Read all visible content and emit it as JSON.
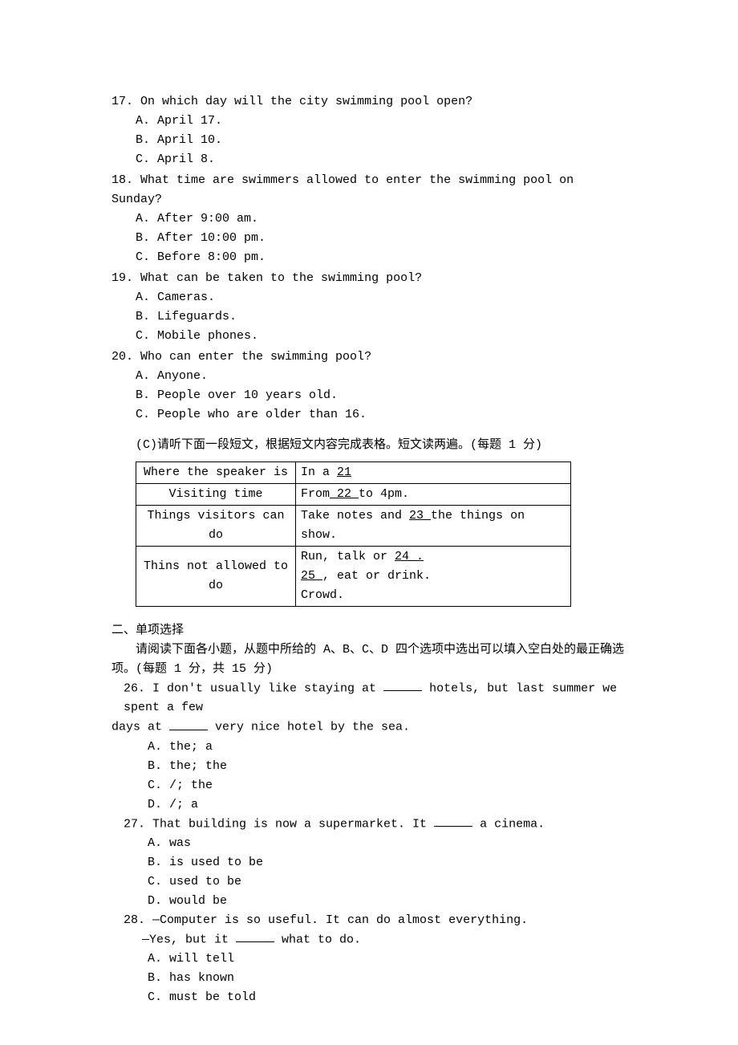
{
  "questions_listening": [
    {
      "num": "17.",
      "text": " On which day will the city swimming pool open?",
      "options": [
        "A. April 17.",
        "B. April 10.",
        "C. April 8."
      ]
    },
    {
      "num": "18.",
      "text": " What time are swimmers allowed to enter the swimming pool on Sunday?",
      "options": [
        "A. After 9:00 am.",
        "B. After 10:00 pm.",
        "C. Before 8:00 pm."
      ]
    },
    {
      "num": "19.",
      "text": " What can be taken to the swimming pool?",
      "options": [
        "A. Cameras.",
        "B. Lifeguards.",
        "C. Mobile phones."
      ]
    },
    {
      "num": "20.",
      "text": " Who can enter the swimming pool?",
      "options": [
        "A. Anyone.",
        "B. People over 10 years old.",
        "C. People who are older than 16."
      ]
    }
  ],
  "section_c_intro": "(C)请听下面一段短文，根据短文内容完成表格。短文读两遍。(每题 1 分)",
  "table": {
    "rows": [
      {
        "label": "Where the speaker is",
        "parts": [
          "In a ",
          "  21  "
        ]
      },
      {
        "label": "Visiting time",
        "parts": [
          "From",
          "  22  ",
          " to 4pm."
        ]
      },
      {
        "label": "Things visitors can do",
        "parts": [
          "Take notes and ",
          "  23  ",
          " the things on show."
        ]
      },
      {
        "label": "Thins not allowed to do",
        "line1": [
          "Run, talk or ",
          "  24  ."
        ],
        "line2": [
          "25  ",
          ", eat or drink."
        ],
        "line3": "Crowd."
      }
    ]
  },
  "section2_heading": "二、单项选择",
  "section2_instruction": "请阅读下面各小题，从题中所给的 A、B、C、D 四个选项中选出可以填入空白处的最正确选项。(每题 1 分，共 15 分)",
  "mc_questions": [
    {
      "num": "26.",
      "line1": " I don't usually like staying at ",
      "line1b": " hotels, but last summer we spent a few",
      "line2_prefix": "days at ",
      "line2_suffix": " very nice hotel by the sea.",
      "options": [
        "A. the; a",
        "B. the; the",
        "C. /; the",
        "D. /; a"
      ]
    },
    {
      "num": "27.",
      "line1": " That building is now a supermarket. It ",
      "line1b": " a cinema.",
      "options": [
        "A. was",
        "B. is used to be",
        "C. used to be",
        "D. would be"
      ]
    },
    {
      "num": "28.",
      "line1": " —Computer is so useful. It can do almost everything.",
      "dash": "—Yes, but it ",
      "dash_suffix": " what to do.",
      "options": [
        "A. will tell",
        "B. has known",
        "C. must be told"
      ]
    }
  ]
}
